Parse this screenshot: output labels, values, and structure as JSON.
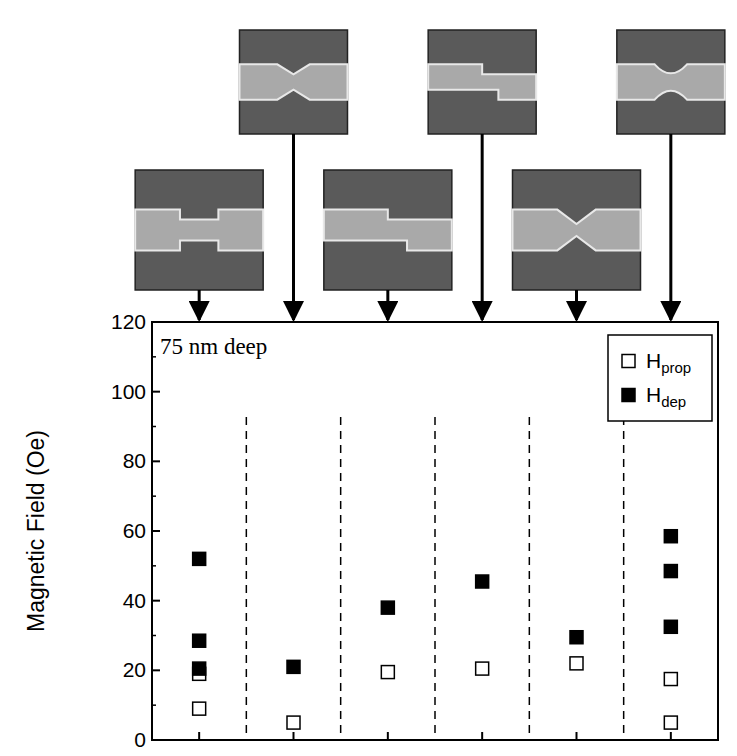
{
  "chart_data": {
    "type": "scatter",
    "annotation": "75 nm deep",
    "y_label": "Magnetic Field (Oe)",
    "categories": [
      null,
      null,
      null,
      null,
      null,
      null
    ],
    "xlim": [
      0.5,
      6.5
    ],
    "ylim": [
      0,
      120
    ],
    "yticks": [
      0,
      20,
      40,
      60,
      80,
      100,
      120
    ],
    "tick_labels": "y",
    "legend": "top-right",
    "series": [
      {
        "name": "Hprop",
        "marker": "open-square",
        "color": "#000000",
        "x": [
          1,
          1,
          2,
          3,
          4,
          5,
          6,
          6
        ],
        "values": [
          19,
          9,
          5,
          19.5,
          20.5,
          22,
          17.5,
          5
        ]
      },
      {
        "name": "Hdep",
        "marker": "filled-square",
        "color": "#000000",
        "x": [
          1,
          1,
          1,
          2,
          3,
          4,
          5,
          6,
          6,
          6
        ],
        "values": [
          52,
          28.5,
          20.5,
          21,
          38,
          45.5,
          29.5,
          58.5,
          48.5,
          32.5
        ]
      }
    ]
  }
}
